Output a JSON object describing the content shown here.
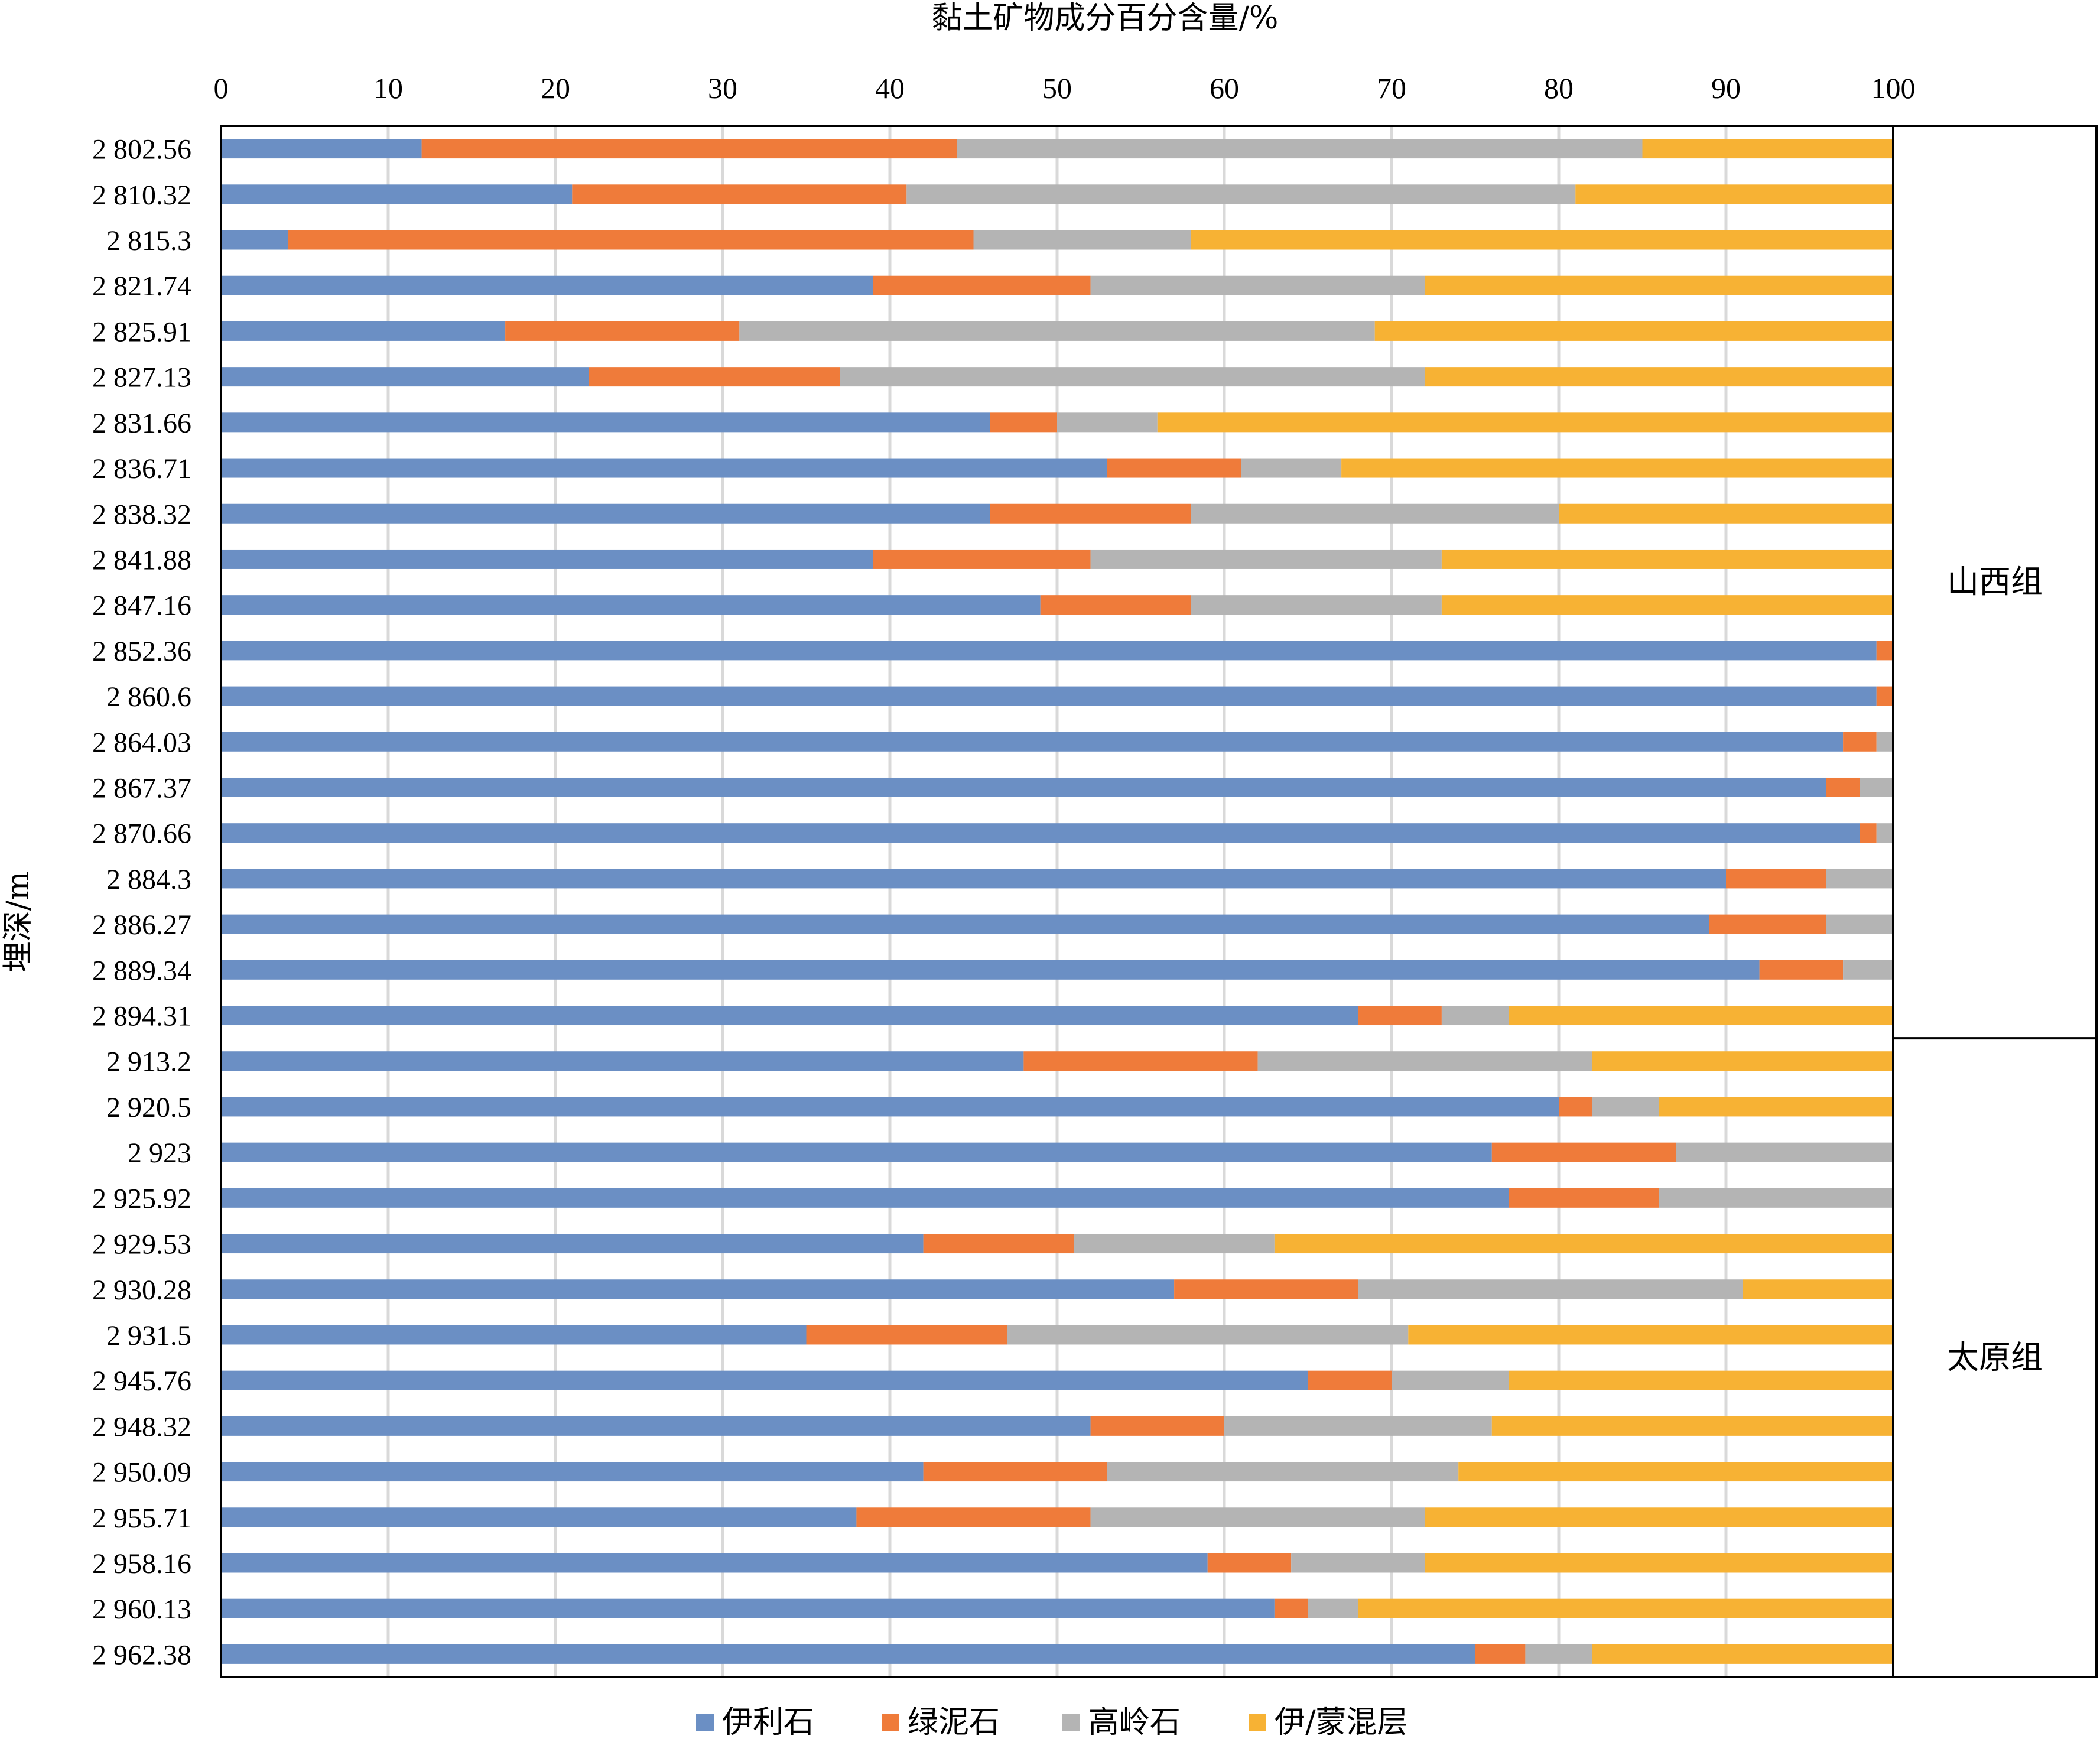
{
  "chart_data": {
    "type": "bar",
    "orientation": "horizontal",
    "stacked": true,
    "xlabel": "黏土矿物成分百分含量/%",
    "ylabel": "埋深/m",
    "xlim": [
      0,
      100
    ],
    "xticks": [
      "0",
      "10",
      "20",
      "30",
      "40",
      "50",
      "60",
      "70",
      "80",
      "90",
      "100"
    ],
    "x_axis_position": "top",
    "grid": true,
    "legend_position": "bottom",
    "categories": [
      "2 802.56",
      "2 810.32",
      "2 815.3",
      "2 821.74",
      "2 825.91",
      "2 827.13",
      "2 831.66",
      "2 836.71",
      "2 838.32",
      "2 841.88",
      "2 847.16",
      "2 852.36",
      "2 860.6",
      "2 864.03",
      "2 867.37",
      "2 870.66",
      "2 884.3",
      "2 886.27",
      "2 889.34",
      "2 894.31",
      "2 913.2",
      "2 920.5",
      "2 923",
      "2 925.92",
      "2 929.53",
      "2 930.28",
      "2 931.5",
      "2 945.76",
      "2 948.32",
      "2 950.09",
      "2 955.71",
      "2 958.16",
      "2 960.13",
      "2 962.38"
    ],
    "series": [
      {
        "name": "伊利石",
        "color": "#6b8fc4",
        "values": [
          12,
          21,
          4,
          39,
          17,
          22,
          46,
          53,
          46,
          39,
          49,
          99,
          99,
          97,
          96,
          98,
          90,
          89,
          92,
          68,
          48,
          80,
          76,
          77,
          42,
          57,
          35,
          65,
          52,
          42,
          38,
          59,
          63,
          75
        ]
      },
      {
        "name": "绿泥石",
        "color": "#ef7b3a",
        "values": [
          32,
          20,
          41,
          13,
          14,
          15,
          4,
          8,
          12,
          13,
          9,
          1,
          1,
          2,
          2,
          1,
          6,
          7,
          5,
          5,
          14,
          2,
          11,
          9,
          9,
          11,
          12,
          5,
          8,
          11,
          14,
          5,
          2,
          3
        ]
      },
      {
        "name": "高岭石",
        "color": "#b4b4b4",
        "values": [
          41,
          40,
          13,
          20,
          38,
          35,
          6,
          6,
          22,
          21,
          15,
          0,
          0,
          1,
          2,
          1,
          4,
          4,
          3,
          4,
          20,
          4,
          13,
          14,
          12,
          23,
          24,
          7,
          16,
          21,
          20,
          8,
          3,
          4
        ]
      },
      {
        "name": "伊/蒙混层",
        "color": "#f7b234",
        "values": [
          15,
          19,
          42,
          28,
          31,
          28,
          44,
          33,
          20,
          27,
          27,
          0,
          0,
          0,
          0,
          0,
          0,
          0,
          0,
          23,
          18,
          14,
          0,
          0,
          37,
          9,
          29,
          23,
          24,
          26,
          28,
          28,
          32,
          18
        ]
      }
    ],
    "groups": [
      {
        "label": "山西组",
        "from": 0,
        "to": 19
      },
      {
        "label": "太原组",
        "from": 20,
        "to": 33
      }
    ]
  }
}
